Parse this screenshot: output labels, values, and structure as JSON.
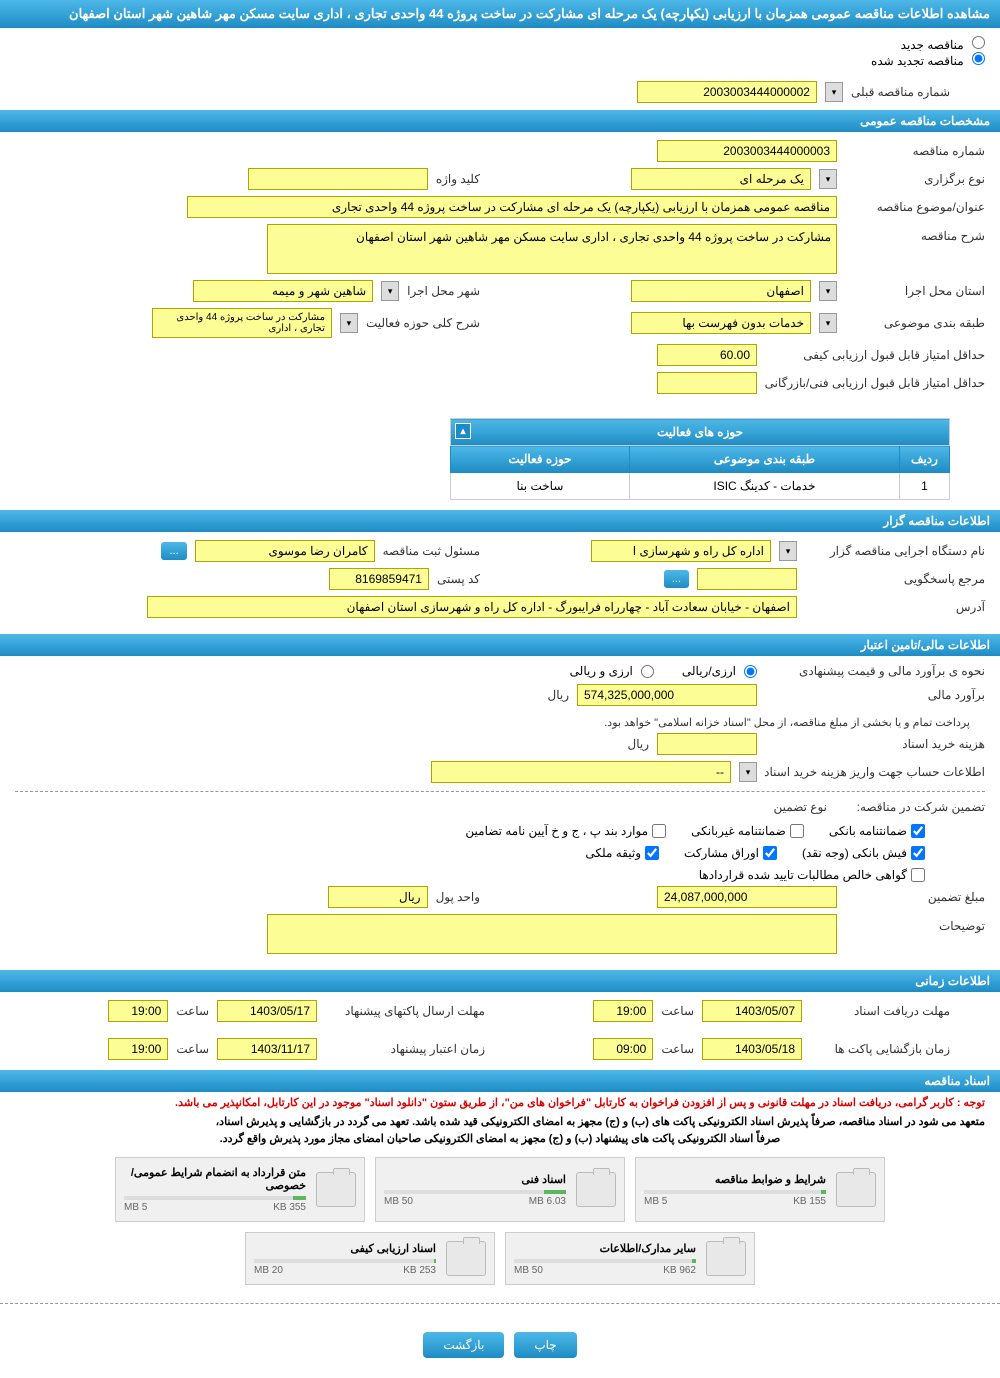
{
  "header": {
    "title": "مشاهده اطلاعات مناقصه عمومی همزمان با ارزیابی (یکپارچه) یک مرحله ای مشارکت در ساخت پروژه 44 واحدی تجاری ، اداری سایت مسکن مهر شاهین شهر استان اصفهان"
  },
  "radio": {
    "new_tender": "مناقصه جدید",
    "renewed_tender": "مناقصه تجدید شده",
    "prev_number_label": "شماره مناقصه قبلی",
    "prev_number": "2003003444000002"
  },
  "sections": {
    "general": "مشخصات مناقصه عمومی",
    "holder": "اطلاعات مناقصه گزار",
    "financial": "اطلاعات مالی/تامین اعتبار",
    "time": "اطلاعات زمانی",
    "docs": "اسناد مناقصه"
  },
  "general": {
    "tender_number_label": "شماره مناقصه",
    "tender_number": "2003003444000003",
    "holding_type_label": "نوع برگزاری",
    "holding_type": "یک مرحله ای",
    "keyword_label": "کلید واژه",
    "keyword": "",
    "subject_label": "عنوان/موضوع مناقصه",
    "subject": "مناقصه عمومی همزمان با ارزیابی (یکپارچه) یک مرحله ای مشارکت در ساخت پروژه 44 واحدی تجاری",
    "description_label": "شرح مناقصه",
    "description": "مشارکت در ساخت پروژه 44 واحدی تجاری ، اداری سایت مسکن مهر شاهین شهر استان اصفهان",
    "province_label": "استان محل اجرا",
    "province": "اصفهان",
    "city_label": "شهر محل اجرا",
    "city": "شاهین شهر و میمه",
    "category_label": "طبقه بندی موضوعی",
    "category": "خدمات بدون فهرست بها",
    "scope_label": "شرح کلی حوزه فعالیت",
    "scope": "مشارکت در ساخت پروژه 44 واحدی تجاری ، اداری",
    "min_quality_score_label": "حداقل امتیاز قابل قبول ارزیابی کیفی",
    "min_quality_score": "60.00",
    "min_technical_score_label": "حداقل امتیاز قابل قبول ارزیابی فنی/بازرگانی",
    "min_technical_score": ""
  },
  "activities": {
    "header": "حوزه های فعالیت",
    "col_row": "ردیف",
    "col_category": "طبقه بندی موضوعی",
    "col_scope": "حوزه فعالیت",
    "rows": [
      {
        "num": "1",
        "category": "خدمات - کدینگ ISIC",
        "scope": "ساخت بنا"
      }
    ]
  },
  "holder": {
    "exec_org_label": "نام دستگاه اجرایی مناقصه گزار",
    "exec_org": "اداره کل راه و شهرسازی ا",
    "registrar_label": "مسئول ثبت مناقصه",
    "registrar": "کامران رضا موسوی",
    "responder_label": "مرجع پاسخگویی",
    "responder": "",
    "postal_code_label": "کد پستی",
    "postal_code": "8169859471",
    "address_label": "آدرس",
    "address": "اصفهان - خیابان سعادت آباد - چهارراه فرایبورگ - اداره کل راه و شهرسازی استان اصفهان"
  },
  "financial": {
    "estimate_method_label": "نحوه ی برآورد مالی و قیمت پیشنهادی",
    "opt_currency": "ارزی/ریالی",
    "opt_currency_rial": "ارزی و ریالی",
    "estimate_label": "برآورد مالی",
    "estimate": "574,325,000,000",
    "currency_rial": "ریال",
    "payment_note": "پرداخت تمام و یا بخشی از مبلغ مناقصه، از محل \"اسناد خزانه اسلامی\" خواهد بود.",
    "purchase_cost_label": "هزینه خرید اسناد",
    "purchase_cost": "",
    "account_info_label": "اطلاعات حساب جهت واریز هزینه خرید اسناد",
    "account_info": "--",
    "guarantee_type_label": "تضمین شرکت در مناقصه:",
    "guarantee_type_sublabel": "نوع تضمین",
    "g_bank_guarantee": "ضمانتنامه بانکی",
    "g_nonbank_guarantee": "ضمانتنامه غیربانکی",
    "g_regulation": "موارد بند پ ، ج و خ آیین نامه تضامین",
    "g_bank_receipt": "فیش بانکی (وجه نقد)",
    "g_participation": "اوراق مشارکت",
    "g_property": "وثیقه ملکی",
    "g_net_claims": "گواهی خالص مطالبات تایید شده قراردادها",
    "guarantee_amount_label": "مبلغ تضمین",
    "guarantee_amount": "24,087,000,000",
    "currency_unit_label": "واحد پول",
    "notes_label": "توضیحات",
    "notes": ""
  },
  "time": {
    "receive_deadline_label": "مهلت دریافت اسناد",
    "receive_deadline_date": "1403/05/07",
    "time_label": "ساعت",
    "receive_deadline_time": "19:00",
    "send_deadline_label": "مهلت ارسال پاکتهای پیشنهاد",
    "send_deadline_date": "1403/05/17",
    "send_deadline_time": "19:00",
    "open_time_label": "زمان بازگشایی پاکت ها",
    "open_date": "1403/05/18",
    "open_time": "09:00",
    "validity_label": "زمان اعتبار پیشنهاد",
    "validity_date": "1403/11/17",
    "validity_time": "19:00"
  },
  "docs_notice": {
    "warning": "توجه : کاربر گرامی، دریافت اسناد در مهلت قانونی و پس از افزودن فراخوان به کارتابل \"فراخوان های من\"، از طریق ستون \"دانلود اسناد\" موجود در این کارتابل، امکانپذیر می باشد.",
    "line1": "متعهد می شود در اسناد مناقصه، صرفاً پذیرش اسناد الکترونیکی پاکت های (ب) و (ج) مجهز به امضای الکترونیکی قید شده باشد. تعهد می گردد در بازگشایی و پذیرش اسناد،",
    "line2": "صرفاً اسناد الکترونیکی پاکت های پیشنهاد (ب) و (ج) مجهز به امضای الکترونیکی صاحبان امضای مجاز مورد پذیرش واقع گردد."
  },
  "documents": [
    {
      "title": "شرایط و ضوابط مناقصه",
      "used": "155 KB",
      "total": "5 MB",
      "pct": 3
    },
    {
      "title": "اسناد فنی",
      "used": "6.03 MB",
      "total": "50 MB",
      "pct": 12
    },
    {
      "title": "متن قرارداد به انضمام شرایط عمومی/خصوصی",
      "used": "355 KB",
      "total": "5 MB",
      "pct": 7
    },
    {
      "title": "سایر مدارک/اطلاعات",
      "used": "962 KB",
      "total": "50 MB",
      "pct": 2
    },
    {
      "title": "اسناد ارزیابی کیفی",
      "used": "253 KB",
      "total": "20 MB",
      "pct": 1
    }
  ],
  "buttons": {
    "print": "چاپ",
    "back": "بازگشت",
    "ellipsis": "..."
  },
  "colors": {
    "header_gradient_top": "#4db8e8",
    "header_gradient_bottom": "#1e8cc4",
    "field_bg": "#fdfd96",
    "field_border": "#a8a800",
    "warning_text": "#d00",
    "progress_fill": "#5cb85c"
  }
}
